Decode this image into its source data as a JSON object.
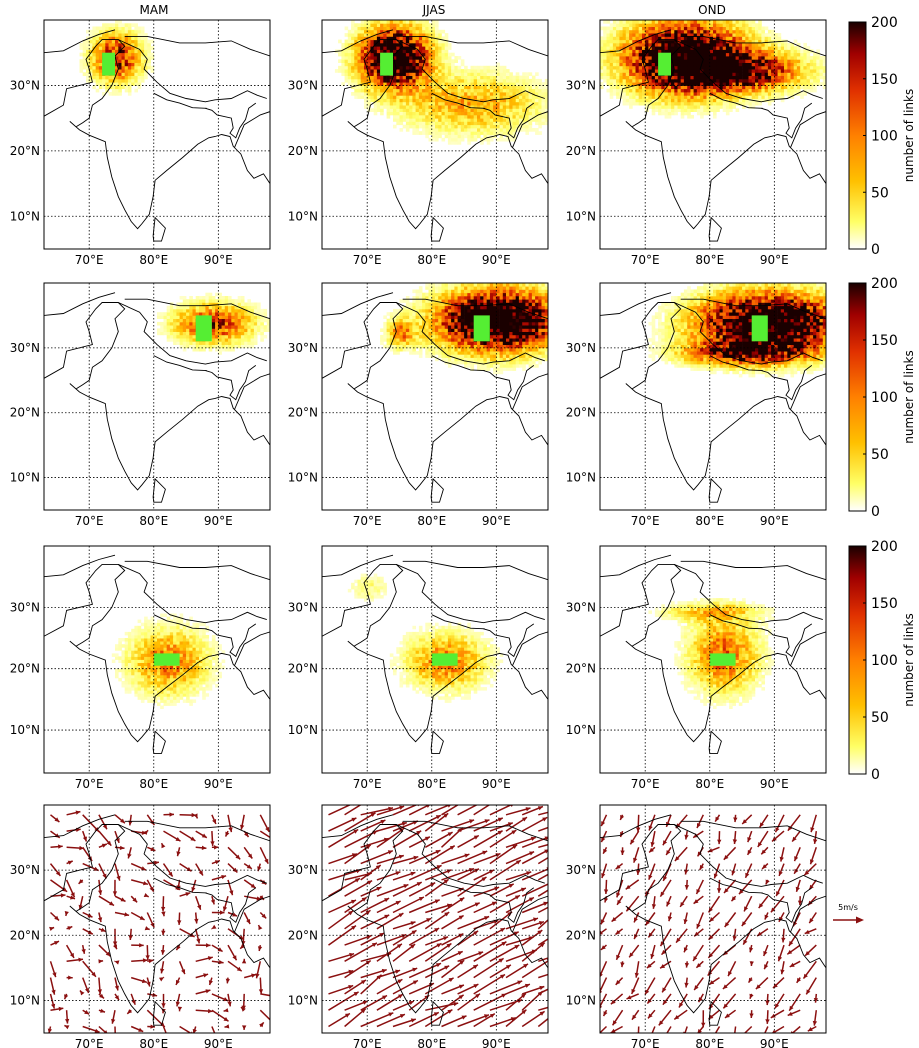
{
  "column_titles": [
    "MAM",
    "JJAS",
    "OND"
  ],
  "colorbar": {
    "label": "number of links",
    "ticks": [
      "0",
      "50",
      "100",
      "150",
      "200"
    ],
    "colormap": [
      "#ffffff",
      "#ffff66",
      "#ffc000",
      "#ff8000",
      "#e03000",
      "#a00000",
      "#1a0000"
    ]
  },
  "arrow_key": {
    "label": "5m/s",
    "color": "#8b0000"
  },
  "colors": {
    "region_box": "#55ee33",
    "arrow": "#8b1010"
  },
  "chart_data": [
    {
      "type": "heatmap",
      "row": 1,
      "col": 1,
      "title": "MAM",
      "region": {
        "lon": [
          72,
          74
        ],
        "lat": [
          31.5,
          35
        ]
      },
      "xlabel_ticks": [
        "70°E",
        "80°E",
        "90°E"
      ],
      "ylabel_ticks": [
        "10°N",
        "20°N",
        "30°N"
      ],
      "xlim": [
        63,
        98
      ],
      "ylim": [
        5,
        40
      ],
      "blobs": [
        {
          "lon": 74,
          "lat": 34,
          "sx": 2.5,
          "sy": 2.5,
          "peak": 160
        }
      ]
    },
    {
      "type": "heatmap",
      "row": 1,
      "col": 2,
      "title": "JJAS",
      "region": {
        "lon": [
          72,
          74
        ],
        "lat": [
          31.5,
          35
        ]
      },
      "xlabel_ticks": [
        "70°E",
        "80°E",
        "90°E"
      ],
      "ylabel_ticks": [
        "10°N",
        "20°N",
        "30°N"
      ],
      "xlim": [
        63,
        98
      ],
      "ylim": [
        5,
        40
      ],
      "blobs": [
        {
          "lon": 74,
          "lat": 34,
          "sx": 3.5,
          "sy": 3,
          "peak": 300
        },
        {
          "lon": 86,
          "lat": 27,
          "sx": 7,
          "sy": 3,
          "peak": 80
        }
      ]
    },
    {
      "type": "heatmap",
      "row": 1,
      "col": 3,
      "title": "OND",
      "region": {
        "lon": [
          72,
          74
        ],
        "lat": [
          31.5,
          35
        ]
      },
      "xlabel_ticks": [
        "70°E",
        "80°E",
        "90°E"
      ],
      "ylabel_ticks": [
        "10°N",
        "20°N",
        "30°N"
      ],
      "xlim": [
        63,
        98
      ],
      "ylim": [
        5,
        40
      ],
      "blobs": [
        {
          "lon": 76,
          "lat": 34,
          "sx": 6,
          "sy": 3.5,
          "peak": 300
        },
        {
          "lon": 85,
          "lat": 32,
          "sx": 6,
          "sy": 2,
          "peak": 180
        }
      ]
    },
    {
      "type": "heatmap",
      "row": 2,
      "col": 1,
      "region": {
        "lon": [
          86.5,
          89
        ],
        "lat": [
          31,
          35
        ]
      },
      "xlabel_ticks": [
        "70°E",
        "80°E",
        "90°E"
      ],
      "ylabel_ticks": [
        "10°N",
        "20°N",
        "30°N"
      ],
      "xlim": [
        63,
        98
      ],
      "ylim": [
        5,
        40
      ],
      "blobs": [
        {
          "lon": 89,
          "lat": 33.5,
          "sx": 4,
          "sy": 2,
          "peak": 140
        }
      ]
    },
    {
      "type": "heatmap",
      "row": 2,
      "col": 2,
      "region": {
        "lon": [
          86.5,
          89
        ],
        "lat": [
          31,
          35
        ]
      },
      "xlabel_ticks": [
        "70°E",
        "80°E",
        "90°E"
      ],
      "ylabel_ticks": [
        "10°N",
        "20°N",
        "30°N"
      ],
      "xlim": [
        63,
        98
      ],
      "ylim": [
        5,
        40
      ],
      "blobs": [
        {
          "lon": 90,
          "lat": 34,
          "sx": 6,
          "sy": 3,
          "peak": 320
        },
        {
          "lon": 75,
          "lat": 32,
          "sx": 1.5,
          "sy": 1.5,
          "peak": 90
        }
      ]
    },
    {
      "type": "heatmap",
      "row": 2,
      "col": 3,
      "region": {
        "lon": [
          86.5,
          89
        ],
        "lat": [
          31,
          35
        ]
      },
      "xlabel_ticks": [
        "70°E",
        "80°E",
        "90°E"
      ],
      "ylabel_ticks": [
        "10°N",
        "20°N",
        "30°N"
      ],
      "xlim": [
        63,
        98
      ],
      "ylim": [
        5,
        40
      ],
      "blobs": [
        {
          "lon": 89,
          "lat": 33.5,
          "sx": 7,
          "sy": 3,
          "peak": 320
        },
        {
          "lon": 85,
          "lat": 29,
          "sx": 6,
          "sy": 1.2,
          "peak": 150
        }
      ]
    },
    {
      "type": "heatmap",
      "row": 3,
      "col": 1,
      "region": {
        "lon": [
          80,
          84
        ],
        "lat": [
          20.5,
          22.5
        ]
      },
      "xlabel_ticks": [
        "70°E",
        "80°E",
        "90°E"
      ],
      "ylabel_ticks": [
        "10°N",
        "20°N",
        "30°N"
      ],
      "xlim": [
        63,
        98
      ],
      "ylim": [
        3,
        40
      ],
      "blobs": [
        {
          "lon": 82,
          "lat": 21,
          "sx": 4,
          "sy": 3.5,
          "peak": 100
        }
      ]
    },
    {
      "type": "heatmap",
      "row": 3,
      "col": 2,
      "region": {
        "lon": [
          80,
          84
        ],
        "lat": [
          20.5,
          22.5
        ]
      },
      "xlabel_ticks": [
        "70°E",
        "80°E",
        "90°E"
      ],
      "ylabel_ticks": [
        "10°N",
        "20°N",
        "30°N"
      ],
      "xlim": [
        63,
        98
      ],
      "ylim": [
        3,
        40
      ],
      "blobs": [
        {
          "lon": 82,
          "lat": 21,
          "sx": 4,
          "sy": 3,
          "peak": 100
        },
        {
          "lon": 70,
          "lat": 33,
          "sx": 2,
          "sy": 1.5,
          "peak": 30
        }
      ]
    },
    {
      "type": "heatmap",
      "row": 3,
      "col": 3,
      "region": {
        "lon": [
          80,
          84
        ],
        "lat": [
          20.5,
          22.5
        ]
      },
      "xlabel_ticks": [
        "70°E",
        "80°E",
        "90°E"
      ],
      "ylabel_ticks": [
        "10°N",
        "20°N",
        "30°N"
      ],
      "xlim": [
        63,
        98
      ],
      "ylim": [
        3,
        40
      ],
      "blobs": [
        {
          "lon": 82,
          "lat": 22,
          "sx": 3.5,
          "sy": 4,
          "peak": 110
        },
        {
          "lon": 80,
          "lat": 29,
          "sx": 5,
          "sy": 1,
          "peak": 60
        }
      ]
    },
    {
      "type": "scatter",
      "row": 4,
      "col": 1,
      "kind": "wind-vectors",
      "xlabel_ticks": [
        "70°E",
        "80°E",
        "90°E"
      ],
      "ylabel_ticks": [
        "10°N",
        "20°N",
        "30°N"
      ],
      "xlim": [
        63,
        98
      ],
      "ylim": [
        5,
        40
      ],
      "wind": {
        "u": 1.5,
        "v": -1.5,
        "var": 2.5
      }
    },
    {
      "type": "scatter",
      "row": 4,
      "col": 2,
      "kind": "wind-vectors",
      "xlabel_ticks": [
        "70°E",
        "80°E",
        "90°E"
      ],
      "ylabel_ticks": [
        "10°N",
        "20°N",
        "30°N"
      ],
      "xlim": [
        63,
        98
      ],
      "ylim": [
        5,
        40
      ],
      "wind": {
        "u": 6,
        "v": 3,
        "var": 1.5
      }
    },
    {
      "type": "scatter",
      "row": 4,
      "col": 3,
      "kind": "wind-vectors",
      "xlabel_ticks": [
        "70°E",
        "80°E",
        "90°E"
      ],
      "ylabel_ticks": [
        "10°N",
        "20°N",
        "30°N"
      ],
      "xlim": [
        63,
        98
      ],
      "ylim": [
        5,
        40
      ],
      "wind": {
        "u": -1.5,
        "v": -2.5,
        "var": 1.5
      }
    }
  ]
}
